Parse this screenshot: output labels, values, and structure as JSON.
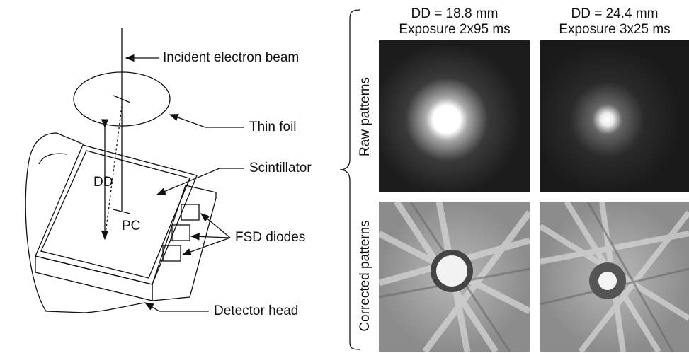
{
  "diagram": {
    "labels": {
      "beam": "Incident electron beam",
      "foil": "Thin foil",
      "scintillator": "Scintillator",
      "dd": "DD",
      "pc": "PC",
      "diodes": "FSD diodes",
      "head": "Detector head"
    },
    "columns": [
      {
        "distance": "DD = 18.8 mm",
        "exposure": "Exposure 2x95 ms"
      },
      {
        "distance": "DD = 24.4 mm",
        "exposure": "Exposure 3x25 ms"
      }
    ],
    "rows": [
      "Raw patterns",
      "Corrected patterns"
    ]
  }
}
